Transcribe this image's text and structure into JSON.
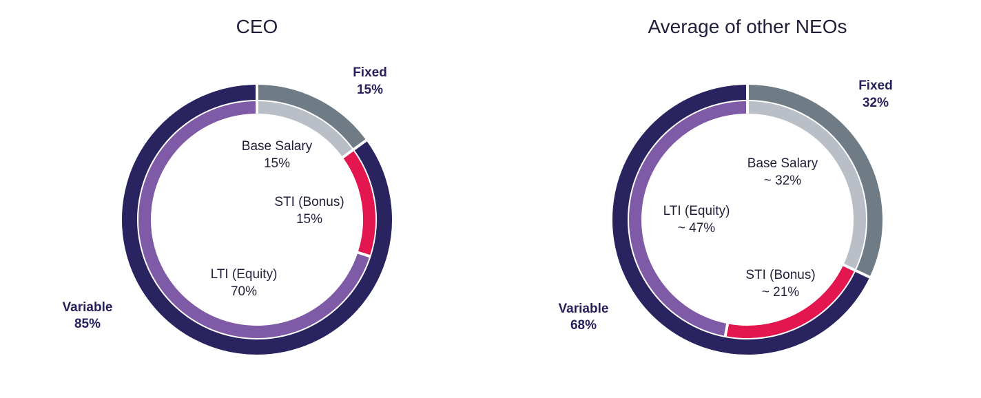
{
  "chart_data": [
    {
      "type": "donut",
      "title": "CEO",
      "outer": [
        {
          "name": "Fixed",
          "pct_label": "15%",
          "value": 15,
          "color": "#6f7b85"
        },
        {
          "name": "Variable",
          "pct_label": "85%",
          "value": 85,
          "color": "#29235f"
        }
      ],
      "inner": [
        {
          "name": "Base Salary",
          "pct_label": "15%",
          "value": 15,
          "color": "#b9bec7"
        },
        {
          "name": "STI (Bonus)",
          "pct_label": "15%",
          "value": 15,
          "color": "#e31650"
        },
        {
          "name": "LTI (Equity)",
          "pct_label": "70%",
          "value": 70,
          "color": "#7f5aa6"
        }
      ]
    },
    {
      "type": "donut",
      "title": "Average of other NEOs",
      "outer": [
        {
          "name": "Fixed",
          "pct_label": "32%",
          "value": 32,
          "color": "#6f7b85"
        },
        {
          "name": "Variable",
          "pct_label": "68%",
          "value": 68,
          "color": "#29235f"
        }
      ],
      "inner": [
        {
          "name": "Base Salary",
          "pct_label": "~ 32%",
          "value": 32,
          "color": "#b9bec7"
        },
        {
          "name": "STI (Bonus)",
          "pct_label": "~ 21%",
          "value": 21,
          "color": "#e31650"
        },
        {
          "name": "LTI (Equity)",
          "pct_label": "~ 47%",
          "value": 47,
          "color": "#7f5aa6"
        }
      ]
    }
  ]
}
